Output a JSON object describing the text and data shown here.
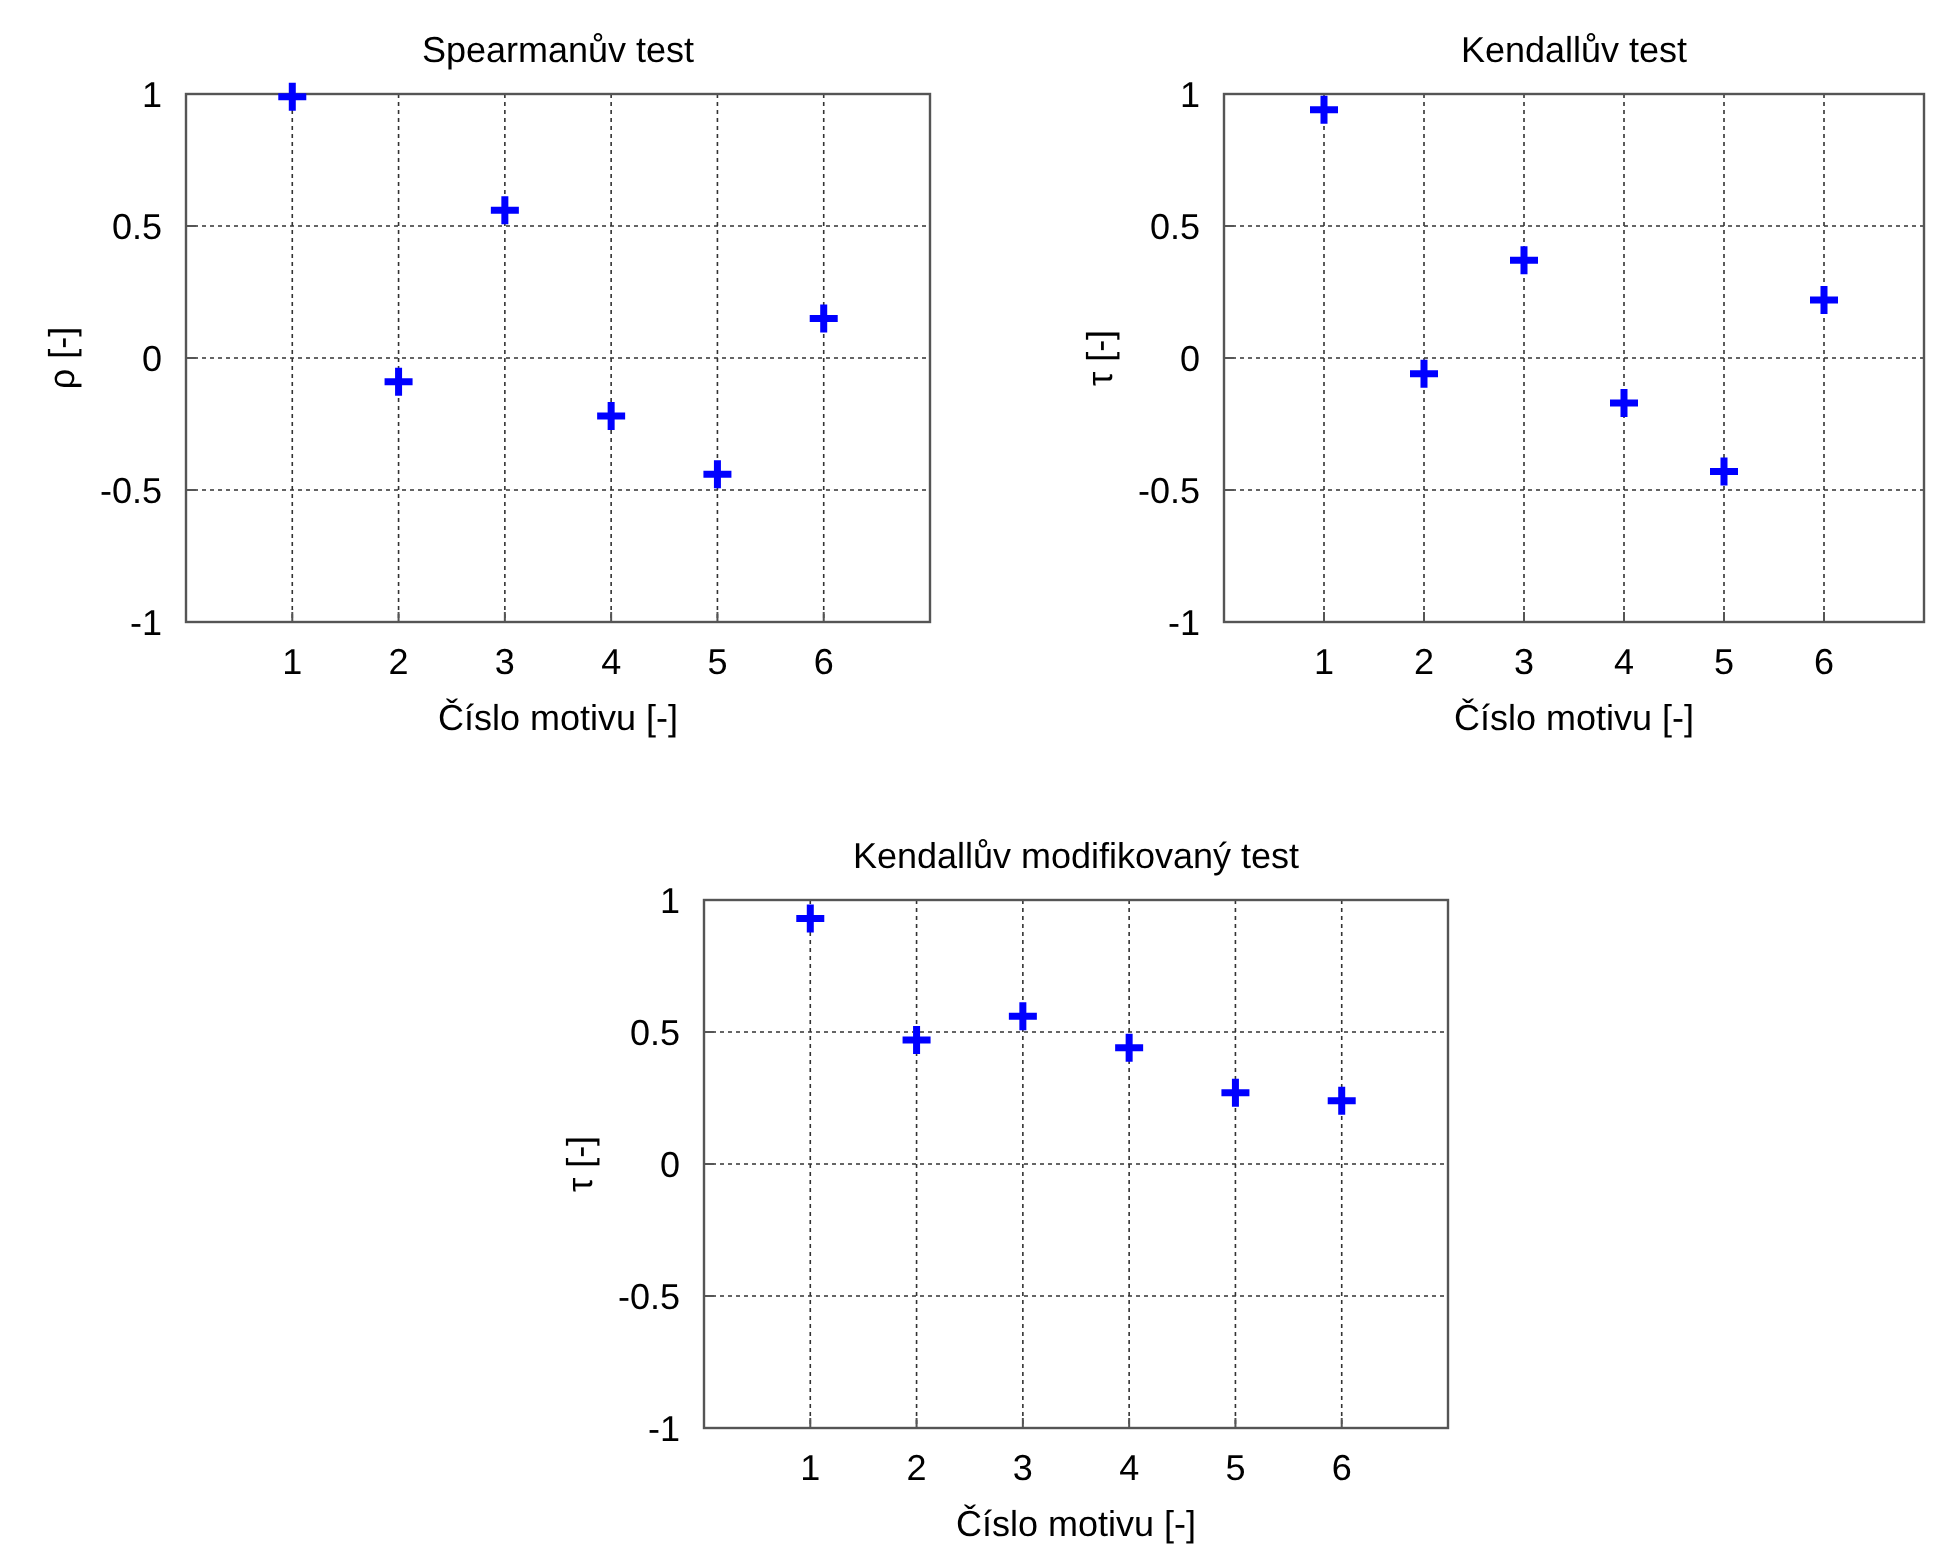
{
  "chart_data": [
    {
      "type": "scatter",
      "title": "Spearmanův test",
      "xlabel": "Číslo motivu [-]",
      "ylabel": "ρ [-]",
      "x": [
        1,
        2,
        3,
        4,
        5,
        6
      ],
      "xlim": [
        0,
        7
      ],
      "xticks": [
        1,
        2,
        3,
        4,
        5,
        6
      ],
      "ylim": [
        -1,
        1
      ],
      "yticks": [
        -1,
        -0.5,
        0,
        0.5,
        1
      ],
      "grid": true,
      "marker": "cross",
      "series": [
        {
          "color": "#0000ff",
          "values": [
            0.99,
            -0.09,
            0.56,
            -0.22,
            -0.44,
            0.15
          ]
        }
      ]
    },
    {
      "type": "scatter",
      "title": "Kendallův test",
      "xlabel": "Číslo motivu [-]",
      "ylabel": "τ [-]",
      "x": [
        1,
        2,
        3,
        4,
        5,
        6
      ],
      "xlim": [
        0,
        7
      ],
      "xticks": [
        1,
        2,
        3,
        4,
        5,
        6
      ],
      "ylim": [
        -1,
        1
      ],
      "yticks": [
        -1,
        -0.5,
        0,
        0.5,
        1
      ],
      "grid": true,
      "marker": "cross",
      "series": [
        {
          "color": "#0000ff",
          "values": [
            0.94,
            -0.06,
            0.37,
            -0.17,
            -0.43,
            0.22
          ]
        }
      ]
    },
    {
      "type": "scatter",
      "title": "Kendallův modifikovaný test",
      "xlabel": "Číslo motivu [-]",
      "ylabel": "τ [-]",
      "x": [
        1,
        2,
        3,
        4,
        5,
        6
      ],
      "xlim": [
        0,
        7
      ],
      "xticks": [
        1,
        2,
        3,
        4,
        5,
        6
      ],
      "ylim": [
        -1,
        1
      ],
      "yticks": [
        -1,
        -0.5,
        0,
        0.5,
        1
      ],
      "grid": true,
      "marker": "cross",
      "series": [
        {
          "color": "#0000ff",
          "values": [
            0.93,
            0.47,
            0.56,
            0.44,
            0.27,
            0.24
          ]
        }
      ]
    }
  ]
}
